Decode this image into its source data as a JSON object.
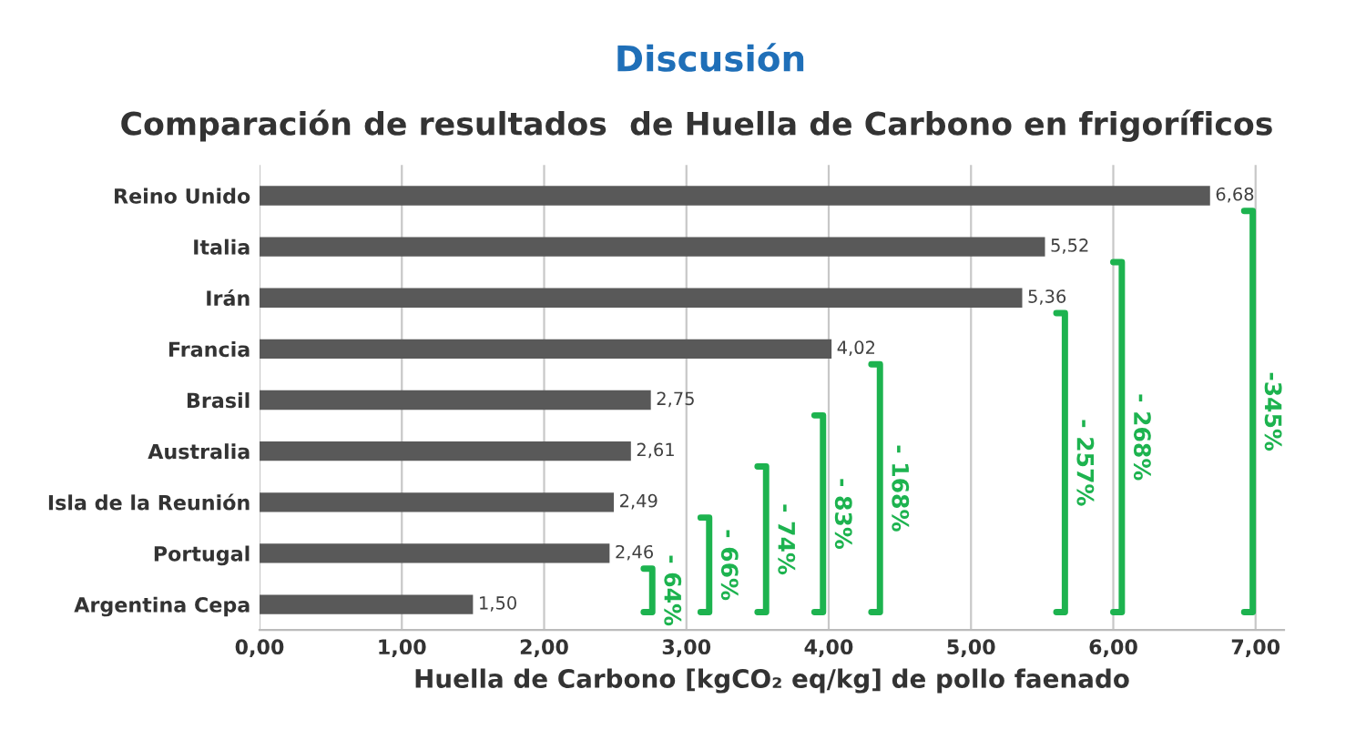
{
  "chart_data": {
    "type": "bar",
    "orientation": "horizontal",
    "title": "Discusión",
    "subtitle": "Comparación de resultados  de Huella de Carbono en frigoríficos",
    "xlabel": "Huella de Carbono [kgCO₂ eq/kg] de pollo faenado",
    "categories": [
      "Reino Unido",
      "Italia",
      "Irán",
      "Francia",
      "Brasil",
      "Australia",
      "Isla de la Reunión",
      "Portugal",
      "Argentina Cepa"
    ],
    "values": [
      6.68,
      5.52,
      5.36,
      4.02,
      2.75,
      2.61,
      2.49,
      2.46,
      1.5
    ],
    "value_labels": [
      "6,68",
      "5,52",
      "5,36",
      "4,02",
      "2,75",
      "2,61",
      "2,49",
      "2,46",
      "1,50"
    ],
    "color": "#595959",
    "xlim": [
      0,
      7.2
    ],
    "xticks": [
      {
        "value": 0,
        "label": "0,00"
      },
      {
        "value": 1,
        "label": "1,00"
      },
      {
        "value": 2,
        "label": "2,00"
      },
      {
        "value": 3,
        "label": "3,00"
      },
      {
        "value": 4,
        "label": "4,00"
      },
      {
        "value": 5,
        "label": "5,00"
      },
      {
        "value": 6,
        "label": "6,00"
      },
      {
        "value": 7,
        "label": "7,00"
      }
    ],
    "grid": "x",
    "annotations": [
      "- 64%",
      "- 66%",
      "- 74%",
      "- 83%",
      "- 168%",
      "- 257%",
      "- 268%",
      "-345%"
    ]
  }
}
